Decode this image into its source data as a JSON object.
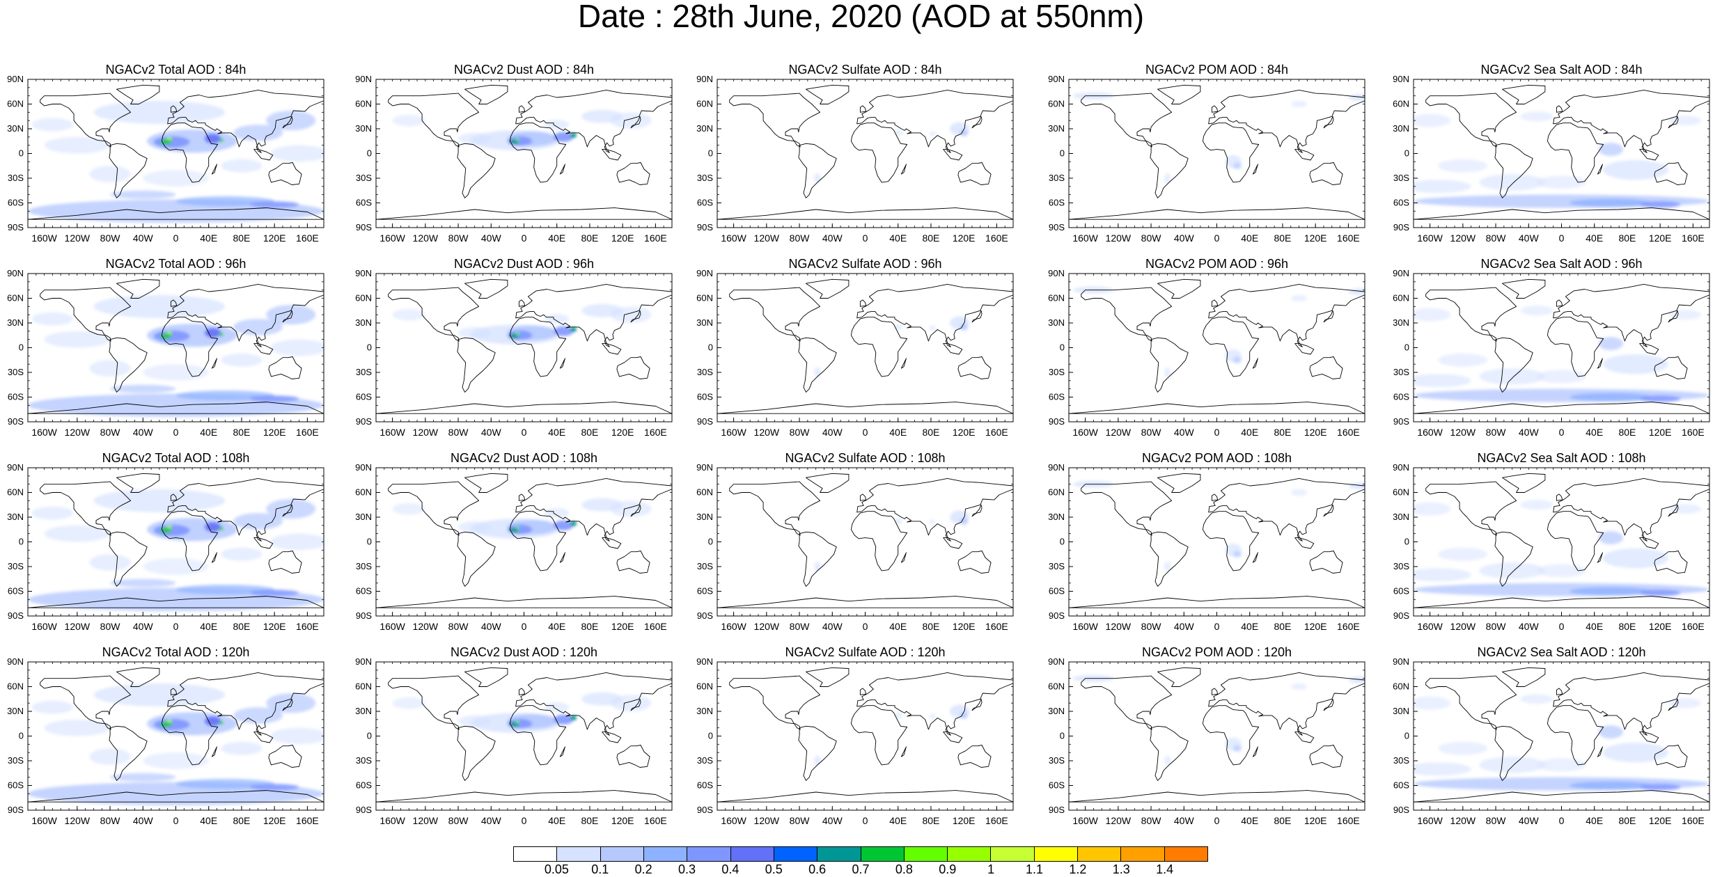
{
  "title": "Date : 28th June, 2020 (AOD at 550nm)",
  "lat_ticks": [
    "90N",
    "60N",
    "30N",
    "0",
    "30S",
    "60S",
    "90S"
  ],
  "lon_ticks": [
    "160W",
    "120W",
    "80W",
    "40W",
    "0",
    "40E",
    "80E",
    "120E",
    "160E"
  ],
  "panels": [
    {
      "title": "NGACv2 Total AOD : 84h",
      "species": "total",
      "forecast_hour": 84
    },
    {
      "title": "NGACv2 Dust AOD : 84h",
      "species": "dust",
      "forecast_hour": 84
    },
    {
      "title": "NGACv2 Sulfate AOD : 84h",
      "species": "sulfate",
      "forecast_hour": 84
    },
    {
      "title": "NGACv2 POM AOD : 84h",
      "species": "pom",
      "forecast_hour": 84
    },
    {
      "title": "NGACv2 Sea Salt AOD : 84h",
      "species": "seasalt",
      "forecast_hour": 84
    },
    {
      "title": "NGACv2 Total AOD : 96h",
      "species": "total",
      "forecast_hour": 96
    },
    {
      "title": "NGACv2 Dust AOD : 96h",
      "species": "dust",
      "forecast_hour": 96
    },
    {
      "title": "NGACv2 Sulfate AOD : 96h",
      "species": "sulfate",
      "forecast_hour": 96
    },
    {
      "title": "NGACv2 POM AOD : 96h",
      "species": "pom",
      "forecast_hour": 96
    },
    {
      "title": "NGACv2 Sea Salt AOD : 96h",
      "species": "seasalt",
      "forecast_hour": 96
    },
    {
      "title": "NGACv2 Total AOD : 108h",
      "species": "total",
      "forecast_hour": 108
    },
    {
      "title": "NGACv2 Dust AOD : 108h",
      "species": "dust",
      "forecast_hour": 108
    },
    {
      "title": "NGACv2 Sulfate AOD : 108h",
      "species": "sulfate",
      "forecast_hour": 108
    },
    {
      "title": "NGACv2 POM AOD : 108h",
      "species": "pom",
      "forecast_hour": 108
    },
    {
      "title": "NGACv2 Sea Salt AOD : 108h",
      "species": "seasalt",
      "forecast_hour": 108
    },
    {
      "title": "NGACv2 Total AOD : 120h",
      "species": "total",
      "forecast_hour": 120
    },
    {
      "title": "NGACv2 Dust AOD : 120h",
      "species": "dust",
      "forecast_hour": 120
    },
    {
      "title": "NGACv2 Sulfate AOD : 120h",
      "species": "sulfate",
      "forecast_hour": 120
    },
    {
      "title": "NGACv2 POM AOD : 120h",
      "species": "pom",
      "forecast_hour": 120
    },
    {
      "title": "NGACv2 Sea Salt  AOD : 120h",
      "species": "seasalt",
      "forecast_hour": 120
    }
  ],
  "colorbar": {
    "labels": [
      "0.05",
      "0.1",
      "0.2",
      "0.3",
      "0.4",
      "0.5",
      "0.6",
      "0.7",
      "0.8",
      "0.9",
      "1",
      "1.1",
      "1.2",
      "1.3",
      "1.4"
    ],
    "colors": [
      "#ffffff",
      "#d6e2ff",
      "#b5c9ff",
      "#8eb2ff",
      "#7f96ff",
      "#6370f8",
      "#0063ff",
      "#009696",
      "#00c633",
      "#63ff00",
      "#96ff00",
      "#c6ff33",
      "#ffff00",
      "#ffc600",
      "#ffa000",
      "#ff7c00",
      "#ff1900"
    ]
  }
}
